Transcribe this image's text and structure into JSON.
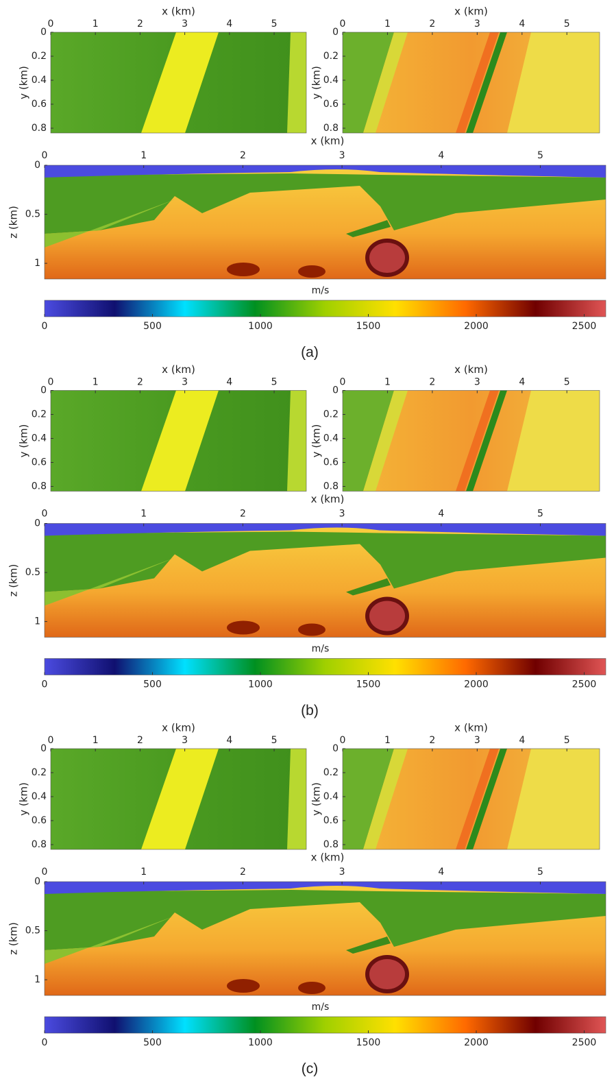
{
  "panels": [
    {
      "label": "(a)",
      "slice_left": {
        "xlabel": "x (km)",
        "ylabel": "y (km)",
        "xlim": [
          0,
          5.72
        ],
        "xticks": [
          0,
          1,
          2,
          3,
          4,
          5
        ],
        "ylim": [
          0,
          0.84
        ],
        "yticks": [
          0,
          0.2,
          0.4,
          0.6,
          0.8
        ]
      },
      "slice_right": {
        "xlabel": "x (km)",
        "ylabel": "y (km)",
        "xlim": [
          0,
          5.73
        ],
        "xticks": [
          0,
          1,
          2,
          3,
          4,
          5
        ],
        "ylim": [
          0,
          0.84
        ],
        "yticks": [
          0,
          0.2,
          0.4,
          0.6,
          0.8
        ]
      },
      "section": {
        "xlabel": "x (km)",
        "ylabel": "z (km)",
        "xlim": [
          0,
          5.66
        ],
        "xticks": [
          0,
          1,
          2,
          3,
          4,
          5
        ],
        "ylim": [
          0,
          1.16
        ],
        "yticks": [
          0,
          0.5,
          1
        ]
      },
      "colorbar": {
        "label": "m/s",
        "lim": [
          0,
          2600
        ],
        "ticks": [
          0,
          500,
          1000,
          1500,
          2000,
          2500
        ],
        "colors": [
          "#4b4be0",
          "#101070",
          "#00e0ff",
          "#009020",
          "#a0d000",
          "#ffe000",
          "#ff6a00",
          "#700000",
          "#e05555"
        ]
      }
    },
    {
      "label": "(b)",
      "slice_left": {
        "xlabel": "x (km)",
        "ylabel": "y (km)",
        "xlim": [
          0,
          5.72
        ],
        "xticks": [
          0,
          1,
          2,
          3,
          4,
          5
        ],
        "ylim": [
          0,
          0.84
        ],
        "yticks": [
          0,
          0.2,
          0.4,
          0.6,
          0.8
        ]
      },
      "slice_right": {
        "xlabel": "x (km)",
        "ylabel": "y (km)",
        "xlim": [
          0,
          5.73
        ],
        "xticks": [
          0,
          1,
          2,
          3,
          4,
          5
        ],
        "ylim": [
          0,
          0.84
        ],
        "yticks": [
          0,
          0.2,
          0.4,
          0.6,
          0.8
        ]
      },
      "section": {
        "xlabel": "x (km)",
        "ylabel": "z (km)",
        "xlim": [
          0,
          5.66
        ],
        "xticks": [
          0,
          1,
          2,
          3,
          4,
          5
        ],
        "ylim": [
          0,
          1.16
        ],
        "yticks": [
          0,
          0.5,
          1
        ]
      },
      "colorbar": {
        "label": "m/s",
        "lim": [
          0,
          2600
        ],
        "ticks": [
          0,
          500,
          1000,
          1500,
          2000,
          2500
        ],
        "colors": [
          "#4b4be0",
          "#101070",
          "#00e0ff",
          "#009020",
          "#a0d000",
          "#ffe000",
          "#ff6a00",
          "#700000",
          "#e05555"
        ]
      }
    },
    {
      "label": "(c)",
      "slice_left": {
        "xlabel": "x (km)",
        "ylabel": "y (km)",
        "xlim": [
          0,
          5.72
        ],
        "xticks": [
          0,
          1,
          2,
          3,
          4,
          5
        ],
        "ylim": [
          0,
          0.84
        ],
        "yticks": [
          0,
          0.2,
          0.4,
          0.6,
          0.8
        ]
      },
      "slice_right": {
        "xlabel": "x (km)",
        "ylabel": "y (km)",
        "xlim": [
          0,
          5.73
        ],
        "xticks": [
          0,
          1,
          2,
          3,
          4,
          5
        ],
        "ylim": [
          0,
          0.84
        ],
        "yticks": [
          0,
          0.2,
          0.4,
          0.6,
          0.8
        ]
      },
      "section": {
        "xlabel": "x (km)",
        "ylabel": "z (km)",
        "xlim": [
          0,
          5.66
        ],
        "xticks": [
          0,
          1,
          2,
          3,
          4,
          5
        ],
        "ylim": [
          0,
          1.16
        ],
        "yticks": [
          0,
          0.5,
          1
        ]
      },
      "colorbar": {
        "label": "m/s",
        "lim": [
          0,
          2600
        ],
        "ticks": [
          0,
          500,
          1000,
          1500,
          2000,
          2500
        ],
        "colors": [
          "#4b4be0",
          "#101070",
          "#00e0ff",
          "#009020",
          "#a0d000",
          "#ffe000",
          "#ff6a00",
          "#700000",
          "#e05555"
        ]
      }
    }
  ]
}
